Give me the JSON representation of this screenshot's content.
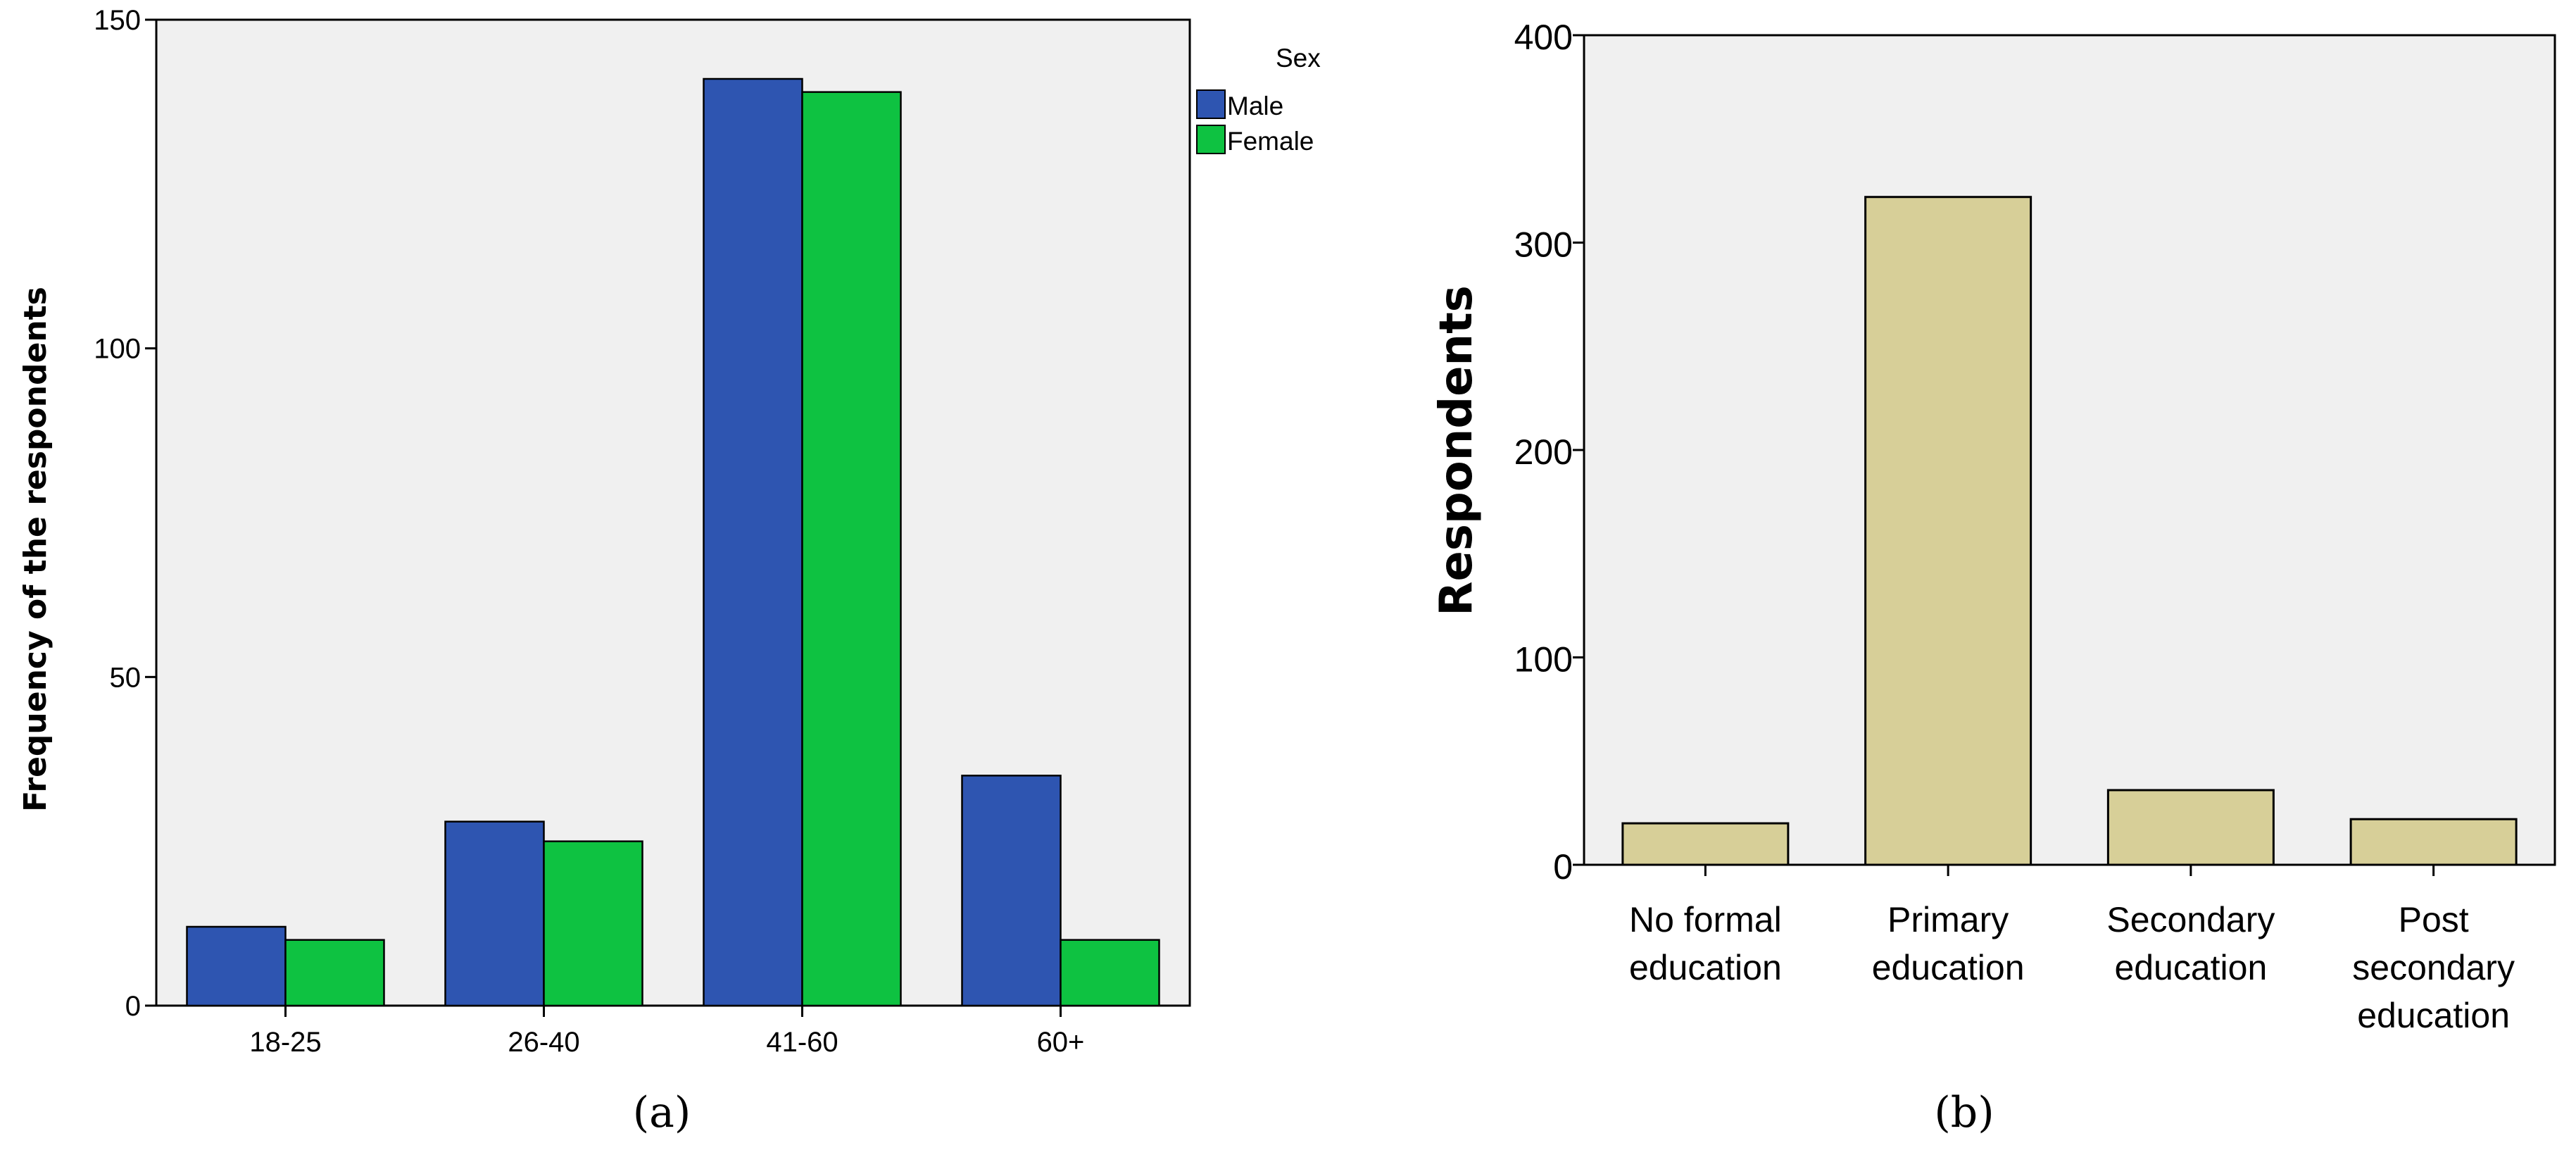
{
  "chart_data": [
    {
      "type": "bar",
      "panel_label": "(a)",
      "categories": [
        "18-25",
        "26-40",
        "41-60",
        "60+"
      ],
      "series": [
        {
          "name": "Male",
          "values": [
            12,
            28,
            141,
            35
          ],
          "color": "#2e55b1"
        },
        {
          "name": "Female",
          "values": [
            10,
            25,
            139,
            10
          ],
          "color": "#0ec241"
        }
      ],
      "title": "",
      "xlabel": "",
      "ylabel": "Frequency of the respondents",
      "ylim": [
        0,
        150
      ],
      "yticks": [
        0,
        50,
        100,
        150
      ],
      "legend_title": "Sex",
      "legend_position": "right",
      "background": "#f0f0f0",
      "grid": false
    },
    {
      "type": "bar",
      "panel_label": "(b)",
      "categories": [
        [
          "No formal",
          "education"
        ],
        [
          "Primary",
          "education"
        ],
        [
          "Secondary",
          "education"
        ],
        [
          "Post",
          "secondary",
          "education"
        ]
      ],
      "values": [
        20,
        322,
        36,
        22
      ],
      "bar_color": "#d7cf98",
      "title": "",
      "xlabel": "",
      "ylabel": "Respondents",
      "ylim": [
        0,
        400
      ],
      "yticks": [
        0,
        100,
        200,
        300,
        400
      ],
      "background": "#f0f0f0",
      "grid": false
    }
  ]
}
